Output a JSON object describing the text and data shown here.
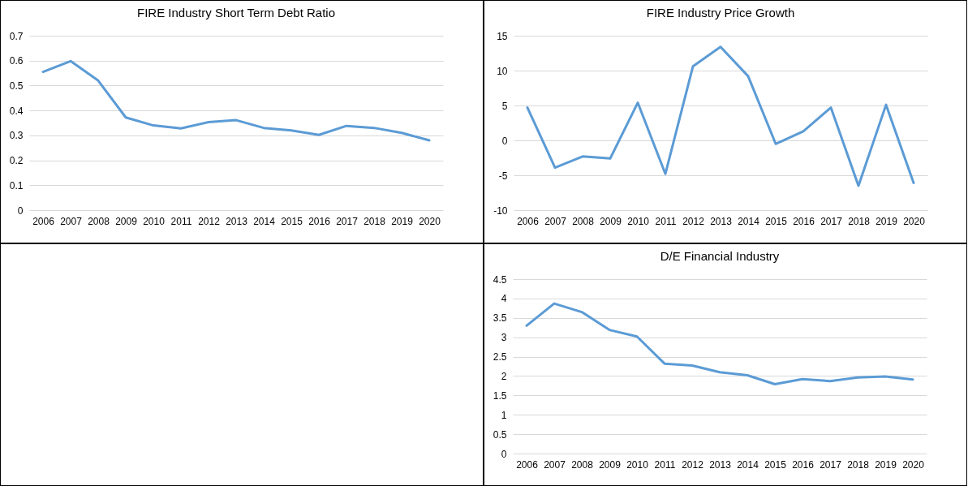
{
  "chart_data": [
    {
      "type": "line",
      "title": "FIRE Industry Short Term Debt Ratio",
      "categories": [
        "2006",
        "2007",
        "2008",
        "2009",
        "2010",
        "2011",
        "2012",
        "2013",
        "2014",
        "2015",
        "2016",
        "2017",
        "2018",
        "2019",
        "2020"
      ],
      "series": [
        {
          "color": "#5b9bd5",
          "values": [
            0.555,
            0.598,
            0.52,
            0.372,
            0.34,
            0.328,
            0.353,
            0.361,
            0.33,
            0.32,
            0.302,
            0.338,
            0.33,
            0.31,
            0.28
          ]
        }
      ],
      "ylim": [
        0,
        0.7
      ],
      "yticks": [
        0,
        0.1,
        0.2,
        0.3,
        0.4,
        0.5,
        0.6,
        0.7
      ],
      "grid": "y"
    },
    {
      "type": "line",
      "title": "FIRE Industry Price Growth",
      "categories": [
        "2006",
        "2007",
        "2008",
        "2009",
        "2010",
        "2011",
        "2012",
        "2013",
        "2014",
        "2015",
        "2016",
        "2017",
        "2018",
        "2019",
        "2020"
      ],
      "series": [
        {
          "color": "#5b9bd5",
          "values": [
            4.7,
            -3.9,
            -2.3,
            -2.6,
            5.4,
            -4.8,
            10.6,
            13.4,
            9.2,
            -0.5,
            1.3,
            4.7,
            -6.5,
            5.1,
            -6.1
          ]
        }
      ],
      "ylim": [
        -10,
        15
      ],
      "yticks": [
        -10,
        -5,
        0,
        5,
        10,
        15
      ],
      "grid": "y"
    },
    {
      "type": "line",
      "title": "D/E Financial Industry",
      "categories": [
        "2006",
        "2007",
        "2008",
        "2009",
        "2010",
        "2011",
        "2012",
        "2013",
        "2014",
        "2015",
        "2016",
        "2017",
        "2018",
        "2019",
        "2020"
      ],
      "series": [
        {
          "color": "#5b9bd5",
          "values": [
            3.3,
            3.87,
            3.65,
            3.19,
            3.02,
            2.32,
            2.27,
            2.1,
            2.02,
            1.79,
            1.92,
            1.87,
            1.96,
            1.99,
            1.91
          ]
        }
      ],
      "ylim": [
        0,
        4.5
      ],
      "yticks": [
        0,
        0.5,
        1,
        1.5,
        2,
        2.5,
        3,
        3.5,
        4,
        4.5
      ],
      "grid": "y"
    }
  ]
}
